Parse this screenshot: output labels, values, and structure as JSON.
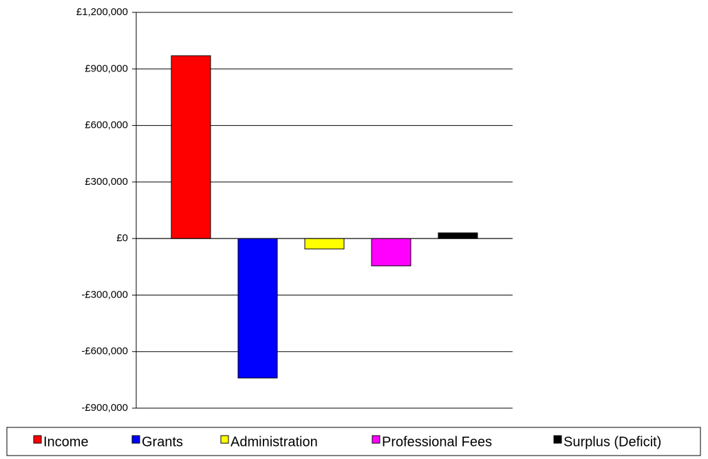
{
  "chart_data": {
    "type": "bar",
    "series": [
      {
        "name": "Income",
        "color": "#ff0000",
        "values": [
          970000
        ]
      },
      {
        "name": "Grants",
        "color": "#0000ff",
        "values": [
          -740000
        ]
      },
      {
        "name": "Administration",
        "color": "#ffff00",
        "values": [
          -55000
        ]
      },
      {
        "name": "Professional Fees",
        "color": "#ff00ff",
        "values": [
          -145000
        ]
      },
      {
        "name": "Surplus (Deficit)",
        "color": "#000000",
        "values": [
          30000
        ]
      }
    ],
    "ylim": [
      -900000,
      1200000
    ],
    "yticks": [
      {
        "value": -900000,
        "label": "-£900,000"
      },
      {
        "value": -600000,
        "label": "-£600,000"
      },
      {
        "value": -300000,
        "label": "-£300,000"
      },
      {
        "value": 0,
        "label": "£0"
      },
      {
        "value": 300000,
        "label": "£300,000"
      },
      {
        "value": 600000,
        "label": "£600,000"
      },
      {
        "value": 900000,
        "label": "£900,000"
      },
      {
        "value": 1200000,
        "label": "£1,200,000"
      }
    ],
    "grid": true,
    "legend": "bottom"
  }
}
